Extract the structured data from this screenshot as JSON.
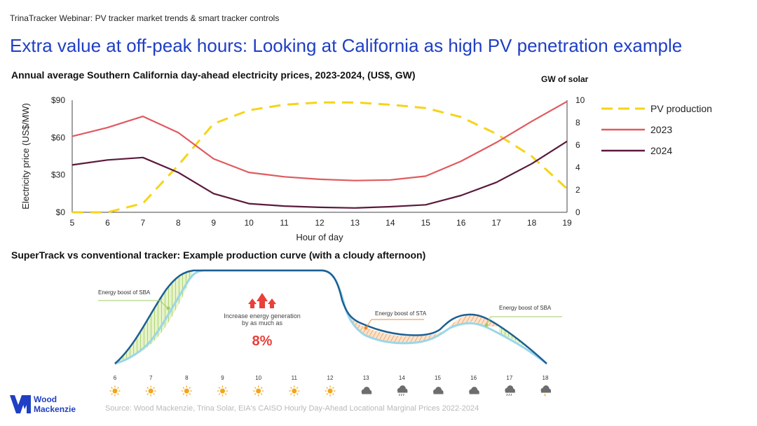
{
  "header": {
    "webinar": "TrinaTracker Webinar: PV tracker market trends & smart tracker controls",
    "headline": "Extra value at off-peak hours: Looking at California as high PV penetration example"
  },
  "chart_data": [
    {
      "type": "line",
      "title": "Annual average Southern California day-ahead electricity prices, 2023-2024, (US$, GW)",
      "xlabel": "Hour of day",
      "ylabel": "Electricity price (US$/MW)",
      "y2label": "GW of solar",
      "x": [
        5,
        6,
        7,
        8,
        9,
        10,
        11,
        12,
        13,
        14,
        15,
        16,
        17,
        18,
        19
      ],
      "ylim": [
        0,
        90
      ],
      "y2lim": [
        0,
        10
      ],
      "yticks": [
        "$0",
        "$30",
        "$60",
        "$90"
      ],
      "y2ticks": [
        "0",
        "2",
        "4",
        "6",
        "8",
        "10"
      ],
      "grid": false,
      "legend": "right",
      "series": [
        {
          "name": "PV production",
          "axis": "right",
          "color": "#f5d418",
          "dash": true,
          "values": [
            0,
            0,
            0.8,
            4.2,
            7.9,
            9.1,
            9.6,
            9.8,
            9.8,
            9.6,
            9.3,
            8.5,
            7.0,
            5.0,
            2.1
          ]
        },
        {
          "name": "2023",
          "axis": "left",
          "color": "#e05a5e",
          "values": [
            61,
            68,
            77,
            64,
            43,
            32,
            28.5,
            26.5,
            25.5,
            26,
            29,
            41,
            56,
            73,
            89
          ]
        },
        {
          "name": "2024",
          "axis": "left",
          "color": "#5a1a3c",
          "values": [
            38,
            42,
            44,
            32,
            15,
            7,
            5,
            4,
            3.5,
            4.5,
            6,
            13.5,
            24,
            39,
            57
          ]
        }
      ]
    },
    {
      "type": "area",
      "title": "SuperTrack vs conventional tracker: Example production curve (with a cloudy afternoon)",
      "x": [
        6,
        7,
        8,
        9,
        10,
        11,
        12,
        13,
        14,
        15,
        16,
        17,
        18
      ],
      "annotations": {
        "sba_left": "Energy boost of SBA",
        "sta": "Energy boost of STA",
        "sba_right": "Energy boost of SBA",
        "increase_text_1": "Increase energy generation",
        "increase_text_2": "by as much as",
        "increase_value": "8%"
      },
      "weather_icons": [
        "sun-icon",
        "sun-icon",
        "sun-icon",
        "sun-icon",
        "sun-icon",
        "sun-icon",
        "sun-icon",
        "cloud-sun-icon",
        "rain-cloud-icon",
        "cloud-sun-icon",
        "cloud-sun-icon",
        "rain-cloud-icon",
        "storm-cloud-icon"
      ],
      "colors": {
        "supertrack": "#1b5f93",
        "conventional": "#9bd6ea",
        "sba_fill": "#8fc34a",
        "sta_fill": "#ee8a3a",
        "arrow": "#e8403a"
      }
    }
  ],
  "footer": {
    "source": "Source: Wood Mackenzie, Trina Solar, EIA's CAISO Hourly Day-Ahead Locational Marginal Prices 2022-2024",
    "logo_line1": "Wood",
    "logo_line2": "Mackenzie"
  }
}
